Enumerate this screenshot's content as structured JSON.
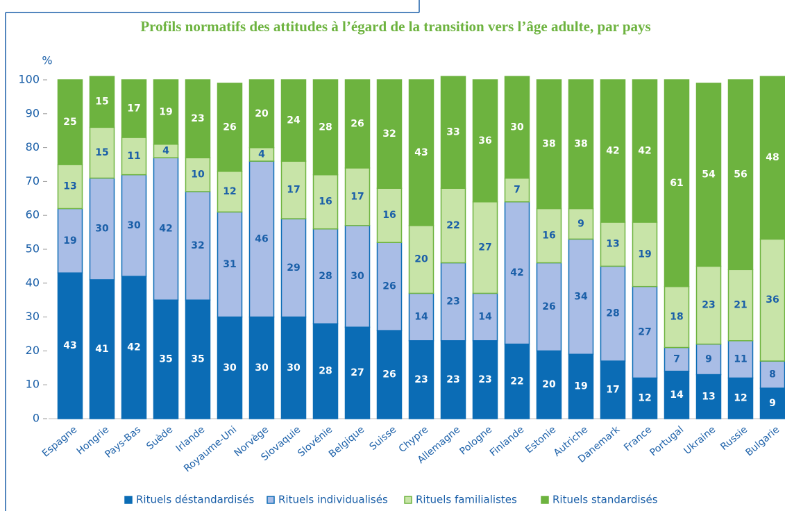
{
  "chart_data": {
    "type": "stacked_bar",
    "title": "Profils normatifs des attitudes à l’égard de la transition vers l’âge adulte, par pays",
    "ylabel": "%",
    "categories": [
      "Espagne",
      "Hongrie",
      "Pays-Bas",
      "Suède",
      "Irlande",
      "Royaume-Uni",
      "Norvège",
      "Slovaquie",
      "Slovénie",
      "Belgique",
      "Suisse",
      "Chypre",
      "Allemagne",
      "Pologne",
      "Finlande",
      "Estonie",
      "Autriche",
      "Danemark",
      "France",
      "Portugal",
      "Ukraine",
      "Russie",
      "Bulgarie"
    ],
    "series": [
      {
        "name": "Rituels déstandardisés",
        "color": "#0b6cb5",
        "text_color": "#ffffff",
        "border": "#0b6cb5",
        "values": [
          43,
          41,
          42,
          35,
          35,
          30,
          30,
          30,
          28,
          27,
          26,
          23,
          23,
          23,
          22,
          20,
          19,
          17,
          12,
          14,
          13,
          12,
          9
        ]
      },
      {
        "name": "Rituels individualisés",
        "color": "#a9bde6",
        "text_color": "#1a5fa8",
        "border": "#0b6cb5",
        "values": [
          19,
          30,
          30,
          42,
          32,
          31,
          46,
          29,
          28,
          30,
          26,
          14,
          23,
          14,
          42,
          26,
          34,
          28,
          27,
          7,
          9,
          11,
          8
        ]
      },
      {
        "name": "Rituels familialistes",
        "color": "#c8e4a8",
        "text_color": "#1a5fa8",
        "border": "#6db33f",
        "values": [
          13,
          15,
          11,
          4,
          10,
          12,
          4,
          17,
          16,
          17,
          16,
          20,
          22,
          27,
          7,
          16,
          9,
          13,
          19,
          18,
          23,
          21,
          36
        ]
      },
      {
        "name": "Rituels standardisés",
        "color": "#6db33f",
        "text_color": "#ffffff",
        "border": "#6db33f",
        "values": [
          25,
          15,
          17,
          19,
          23,
          26,
          20,
          24,
          28,
          26,
          32,
          43,
          33,
          36,
          30,
          38,
          38,
          42,
          42,
          61,
          54,
          56,
          48
        ]
      }
    ],
    "ylim": [
      0,
      100
    ],
    "yticks": [
      0,
      10,
      20,
      30,
      40,
      50,
      60,
      70,
      80,
      90,
      100
    ]
  }
}
